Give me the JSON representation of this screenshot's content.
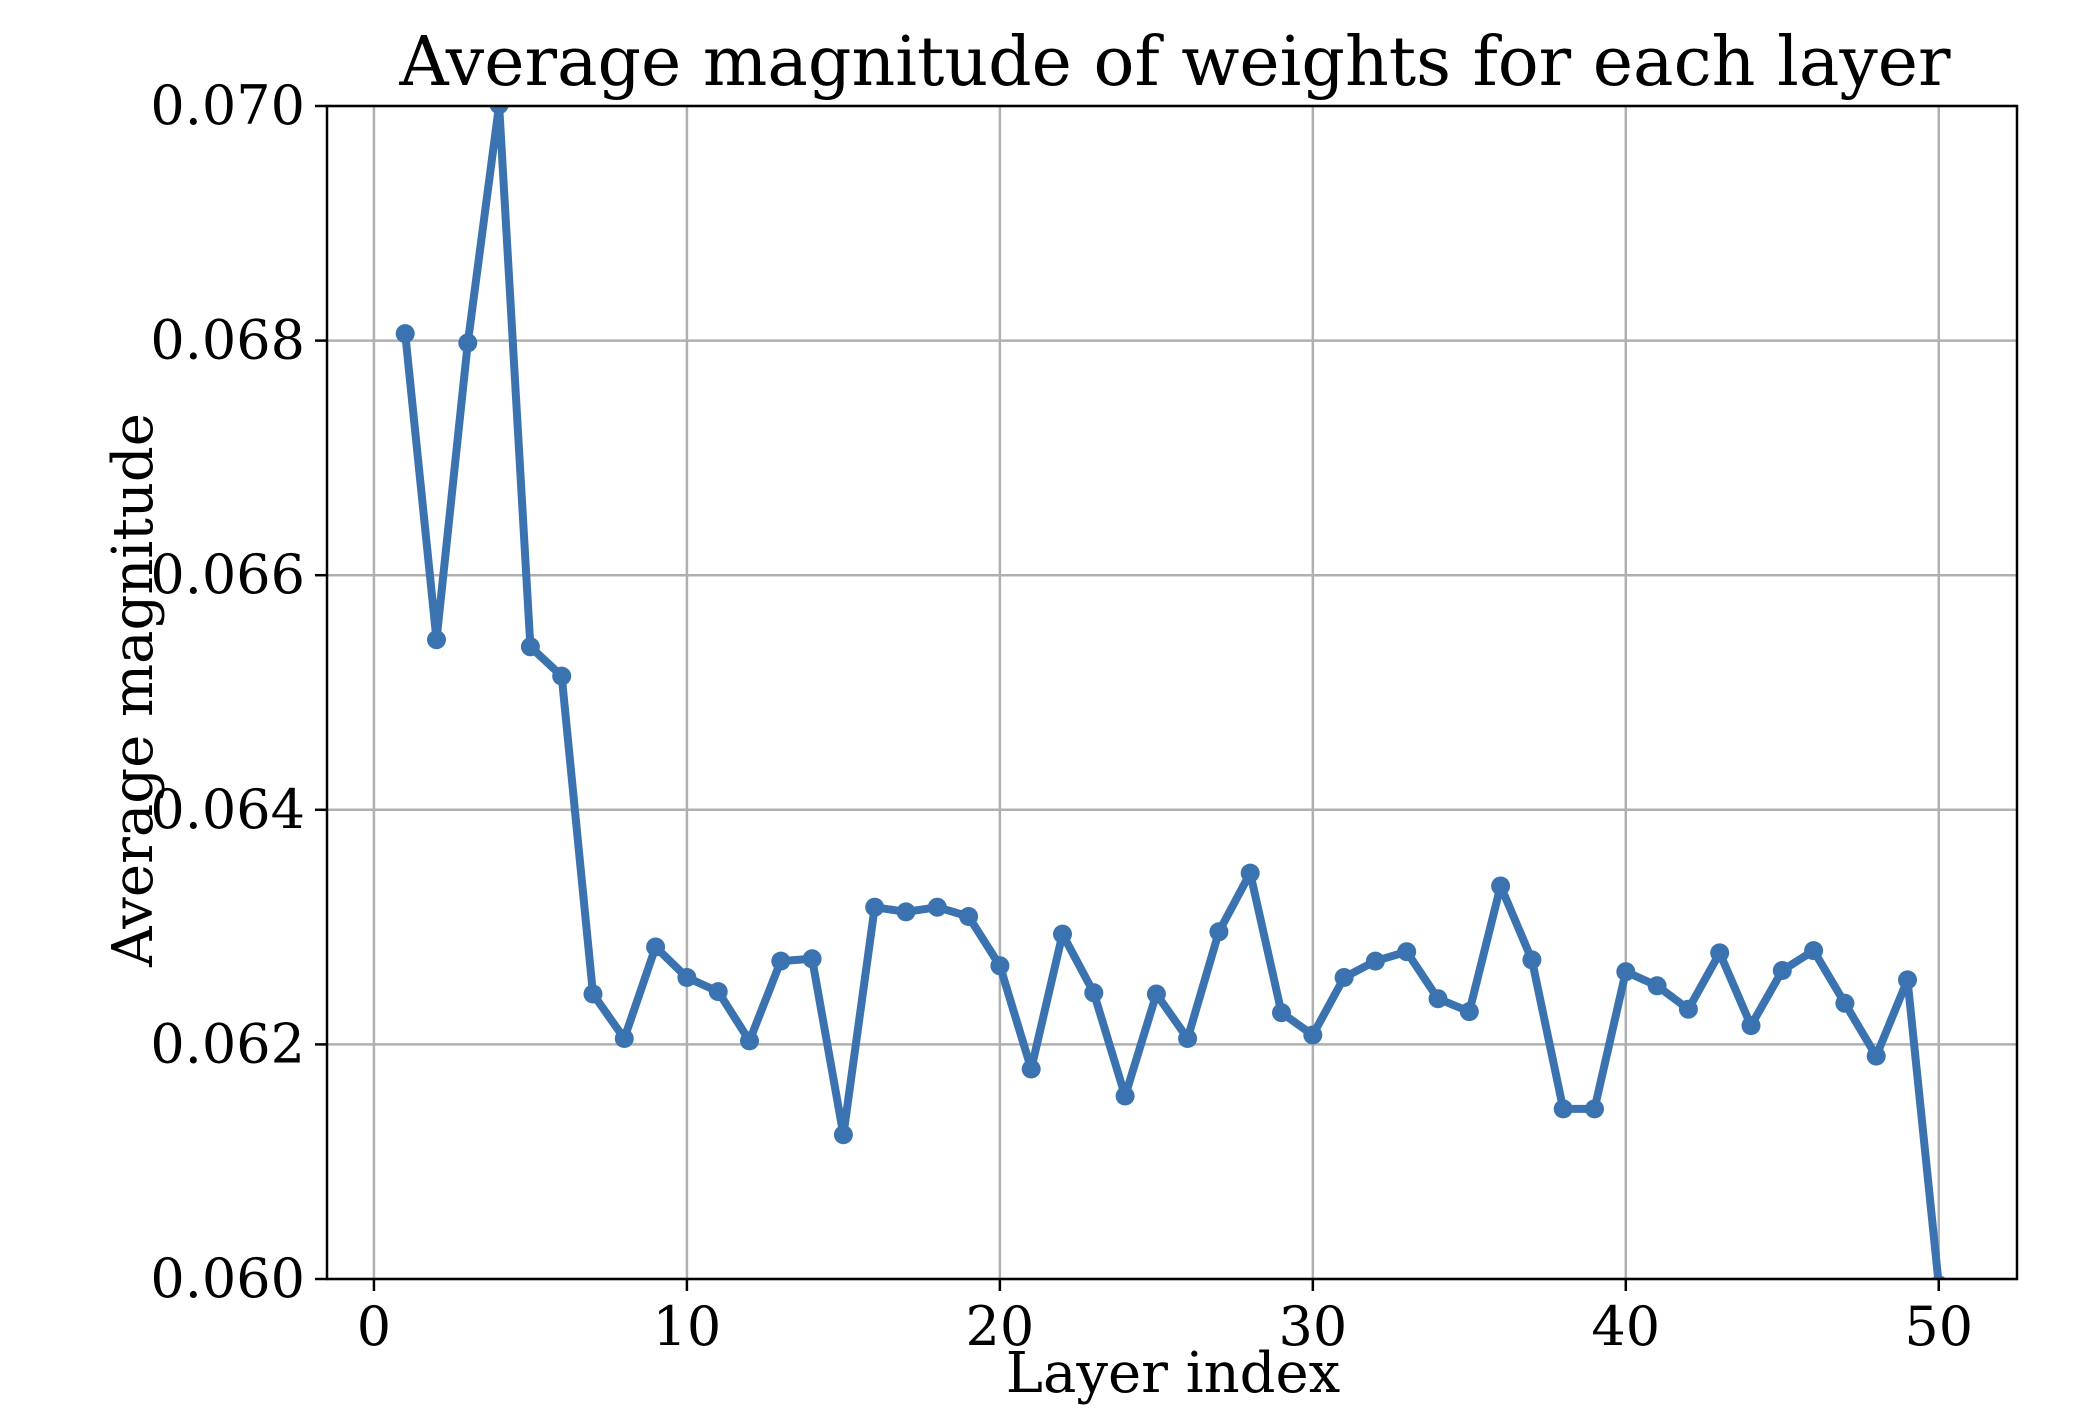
{
  "chart_data": {
    "type": "line",
    "title": "Average magnitude of weights for each layer",
    "xlabel": "Layer index",
    "ylabel": "Average magnitude",
    "xlim": [
      -1.5,
      52.5
    ],
    "ylim": [
      0.06,
      0.07
    ],
    "grid": true,
    "x_ticks": [
      0,
      10,
      20,
      30,
      40,
      50
    ],
    "x_tick_labels": [
      "0",
      "10",
      "20",
      "30",
      "40",
      "50"
    ],
    "y_ticks": [
      0.06,
      0.062,
      0.064,
      0.066,
      0.068,
      0.07
    ],
    "y_tick_labels": [
      "0.060",
      "0.062",
      "0.064",
      "0.066",
      "0.068",
      "0.070"
    ],
    "series": [
      {
        "color": "#3a73b0",
        "marker": "circle",
        "x": [
          1,
          2,
          3,
          4,
          5,
          6,
          7,
          8,
          9,
          10,
          11,
          12,
          13,
          14,
          15,
          16,
          17,
          18,
          19,
          20,
          21,
          22,
          23,
          24,
          25,
          26,
          27,
          28,
          29,
          30,
          31,
          32,
          33,
          34,
          35,
          36,
          37,
          38,
          39,
          40,
          41,
          42,
          43,
          44,
          45,
          46,
          47,
          48,
          49,
          50
        ],
        "values": [
          0.06806,
          0.06545,
          0.06798,
          0.07001,
          0.06539,
          0.06514,
          0.06243,
          0.06205,
          0.06283,
          0.06257,
          0.06245,
          0.06203,
          0.06271,
          0.06273,
          0.06123,
          0.06317,
          0.06313,
          0.06317,
          0.06309,
          0.06267,
          0.06179,
          0.06294,
          0.06244,
          0.06156,
          0.06243,
          0.06205,
          0.06296,
          0.06346,
          0.06227,
          0.06208,
          0.06257,
          0.06271,
          0.06279,
          0.06239,
          0.06228,
          0.06335,
          0.06272,
          0.06145,
          0.06145,
          0.06262,
          0.0625,
          0.0623,
          0.06278,
          0.06216,
          0.06263,
          0.0628,
          0.06235,
          0.0619,
          0.06255,
          0.05995
        ]
      }
    ]
  }
}
